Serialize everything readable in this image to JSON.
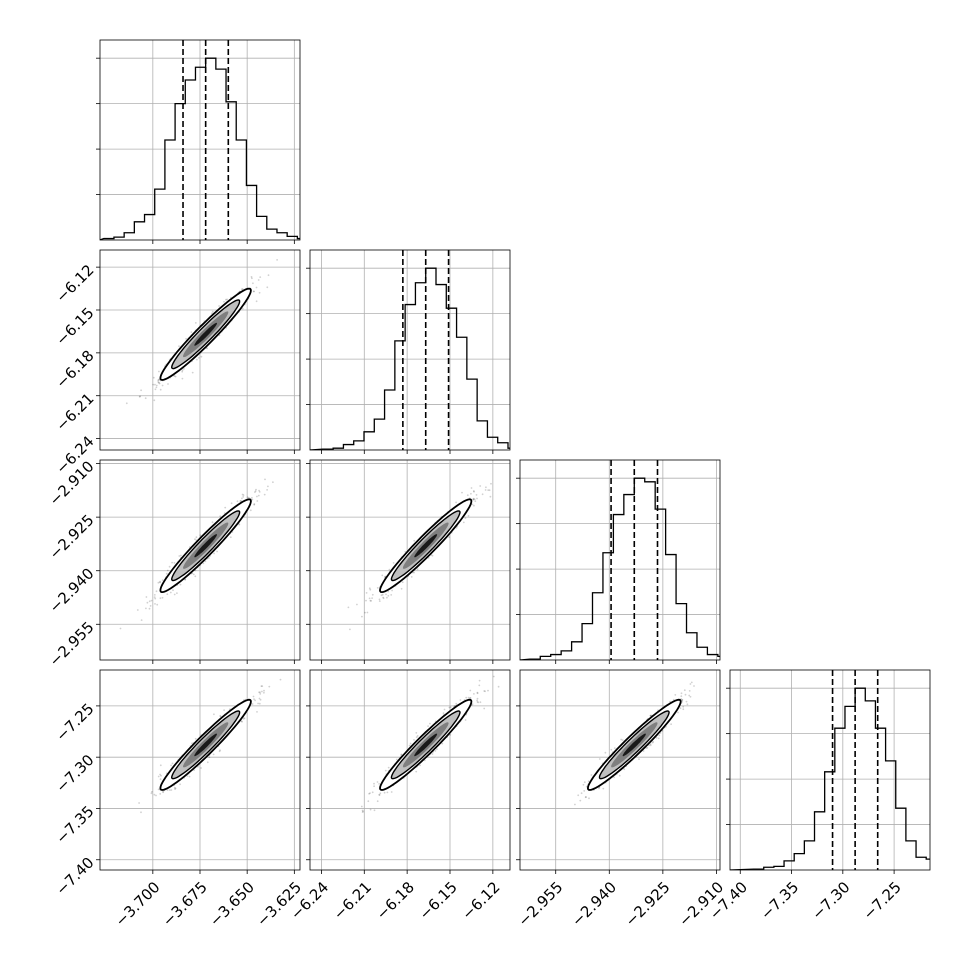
{
  "chart_data": {
    "type": "corner",
    "parameters": [
      {
        "range": [
          -3.728,
          -3.622
        ],
        "ticks": [
          -3.7,
          -3.675,
          -3.65,
          -3.625
        ],
        "tick_labels": [
          "−3.700",
          "−3.675",
          "−3.650",
          "−3.625"
        ],
        "quantiles": [
          -3.684,
          -3.672,
          -3.66
        ],
        "median": -3.672,
        "sigma": 0.012,
        "hist_heights": [
          0.008,
          0.016,
          0.04,
          0.1,
          0.14,
          0.28,
          0.55,
          0.75,
          0.88,
          0.95,
          1.0,
          0.94,
          0.76,
          0.55,
          0.3,
          0.13,
          0.06,
          0.04,
          0.02,
          0.008
        ]
      },
      {
        "range": [
          -6.248,
          -6.108
        ],
        "ticks": [
          -6.24,
          -6.21,
          -6.18,
          -6.15,
          -6.12
        ],
        "tick_labels": [
          "−6.24",
          "−6.21",
          "−6.18",
          "−6.15",
          "−6.12"
        ],
        "quantiles": [
          -6.183,
          -6.167,
          -6.151
        ],
        "median": -6.167,
        "sigma": 0.016,
        "hist_heights": [
          0.005,
          0.01,
          0.03,
          0.05,
          0.1,
          0.17,
          0.33,
          0.6,
          0.8,
          0.92,
          1.0,
          0.91,
          0.78,
          0.62,
          0.39,
          0.16,
          0.07,
          0.04,
          0.01,
          0.005
        ]
      },
      {
        "range": [
          -2.965,
          -2.909
        ],
        "ticks": [
          -2.955,
          -2.94,
          -2.925,
          -2.91
        ],
        "tick_labels": [
          "−2.955",
          "−2.940",
          "−2.925",
          "−2.910"
        ],
        "quantiles": [
          -2.9395,
          -2.933,
          -2.9265
        ],
        "median": -2.933,
        "sigma": 0.0065,
        "hist_heights": [
          0.005,
          0.02,
          0.03,
          0.05,
          0.1,
          0.2,
          0.37,
          0.59,
          0.8,
          0.91,
          1.0,
          0.98,
          0.83,
          0.58,
          0.31,
          0.15,
          0.07,
          0.03,
          0.02,
          0.005
        ]
      },
      {
        "range": [
          -7.41,
          -7.215
        ],
        "ticks": [
          -7.4,
          -7.35,
          -7.3,
          -7.25
        ],
        "tick_labels": [
          "−7.40",
          "−7.35",
          "−7.30",
          "−7.25"
        ],
        "quantiles": [
          -7.31,
          -7.288,
          -7.266
        ],
        "median": -7.288,
        "sigma": 0.022,
        "hist_heights": [
          0.005,
          0.015,
          0.02,
          0.05,
          0.09,
          0.16,
          0.32,
          0.54,
          0.78,
          0.9,
          1.0,
          0.93,
          0.78,
          0.6,
          0.34,
          0.16,
          0.07,
          0.06,
          0.02,
          0.01
        ]
      }
    ],
    "correlation": 0.96,
    "contour_levels_sigma": [
      0.5,
      1.0,
      1.5,
      2.0
    ],
    "grid": true,
    "colors": {
      "contour": "#000000",
      "fill_outer": "#ffffff",
      "fill_mid": "#bfbfbf",
      "fill_inner": "#7f7f7f",
      "fill_core": "#1a1a1a",
      "points": "#000000",
      "grid": "#b0b0b0"
    }
  }
}
